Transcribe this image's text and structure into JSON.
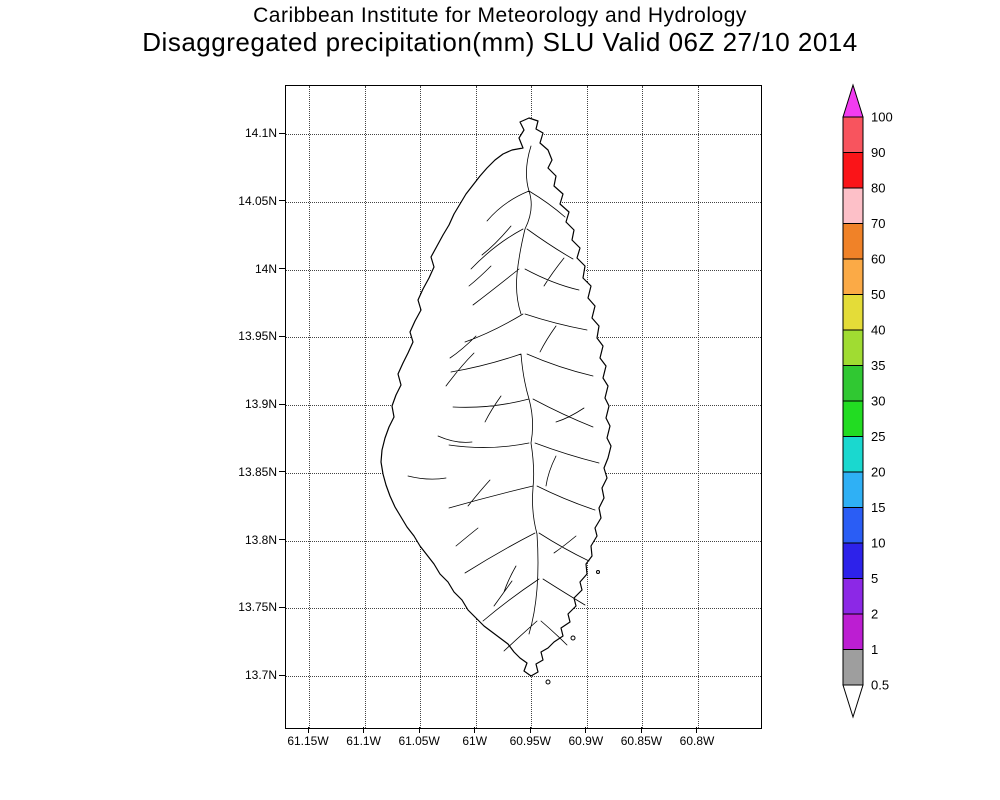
{
  "header": {
    "title_line1": "Caribbean Institute for Meteorology and Hydrology",
    "title_line2": "Disaggregated precipitation(mm) SLU Valid 06Z 27/10 2014"
  },
  "chart_data": {
    "type": "map",
    "title": "Caribbean Institute for Meteorology and Hydrology",
    "subtitle": "Disaggregated precipitation(mm) SLU Valid 06Z 27/10 2014",
    "variable": "Disaggregated precipitation(mm)",
    "domain_label": "SLU",
    "valid_time": "06Z 27/10 2014",
    "grid_style": "dotted",
    "lat_ticks": [
      "14.1N",
      "14.05N",
      "14N",
      "13.95N",
      "13.9N",
      "13.85N",
      "13.8N",
      "13.75N",
      "13.7N"
    ],
    "lon_ticks": [
      "61.15W",
      "61.1W",
      "61.05W",
      "61W",
      "60.95W",
      "60.9W",
      "60.85W",
      "60.8W"
    ],
    "colorbar": {
      "position": "right",
      "labels_top_to_bottom": [
        "100",
        "90",
        "80",
        "70",
        "60",
        "50",
        "40",
        "35",
        "30",
        "25",
        "20",
        "15",
        "10",
        "5",
        "2",
        "1",
        "0.5"
      ],
      "above_max_color": "#f23cf0",
      "segment_colors_top_to_bottom": [
        "#f8545e",
        "#fa1418",
        "#fdc0c8",
        "#f08228",
        "#fbaa46",
        "#e4dc38",
        "#a0dc32",
        "#30c832",
        "#22dc22",
        "#1ad8cf",
        "#2fb0f5",
        "#2a5df5",
        "#2d22ea",
        "#8c28e6",
        "#bc1ed2",
        "#9e9e9e"
      ],
      "below_min_color": "#ffffff",
      "outline_color": "#000000"
    },
    "map_outline_color": "#000000",
    "map_fill_color": "#ffffff"
  }
}
